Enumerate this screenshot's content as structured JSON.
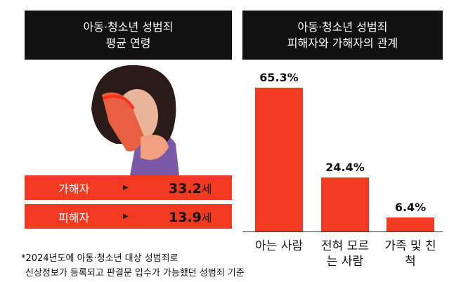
{
  "left_panel": {
    "title_lines": [
      "아동·청소년 성범죄",
      "평균 연령"
    ],
    "rows": [
      {
        "label": "가해자",
        "arrow": "▶",
        "value": "33.2",
        "unit": "세"
      },
      {
        "label": "피해자",
        "arrow": "▶",
        "value": "13.9",
        "unit": "세"
      }
    ]
  },
  "chart_data": {
    "type": "bar",
    "title_lines": [
      "아동·청소년 성범죄",
      "피해자와 가해자의 관계"
    ],
    "categories": [
      "아는 사람",
      "전혀 모르는 사람",
      "가족 및 친척"
    ],
    "values": [
      65.3,
      24.4,
      6.4
    ],
    "value_labels": [
      "65.3%",
      "24.4%",
      "6.4%"
    ],
    "color": "#f23a22"
  },
  "footnote": [
    "*2024년도에 아동·청소년 대상 성범죄로",
    "신상정보가 등록되고 판결문 입수가 가능했던 성범죄 기준"
  ]
}
